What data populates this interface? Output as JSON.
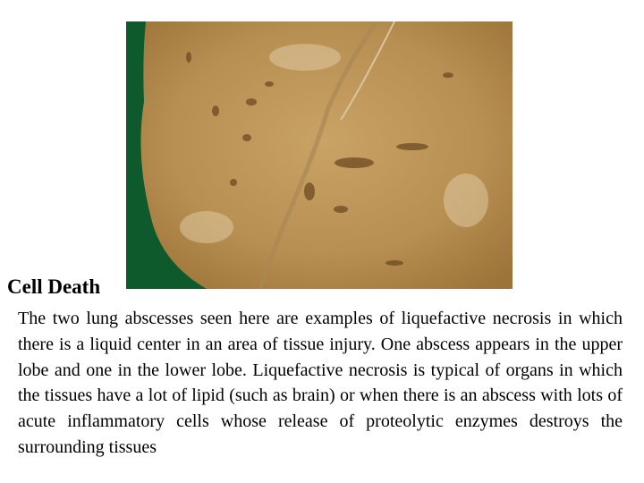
{
  "title": "Cell Death",
  "body": "The two lung abscesses seen here are examples of liquefactive necrosis in which there is a liquid center in an area of tissue injury. One abscess appears in the upper lobe and one in the lower lobe. Liquefactive necrosis is typical of organs in which the tissues have a lot of lipid (such as brain) or when there is an abscess with lots of acute inflammatory cells whose release of proteolytic enzymes destroys the surrounding tissues"
}
